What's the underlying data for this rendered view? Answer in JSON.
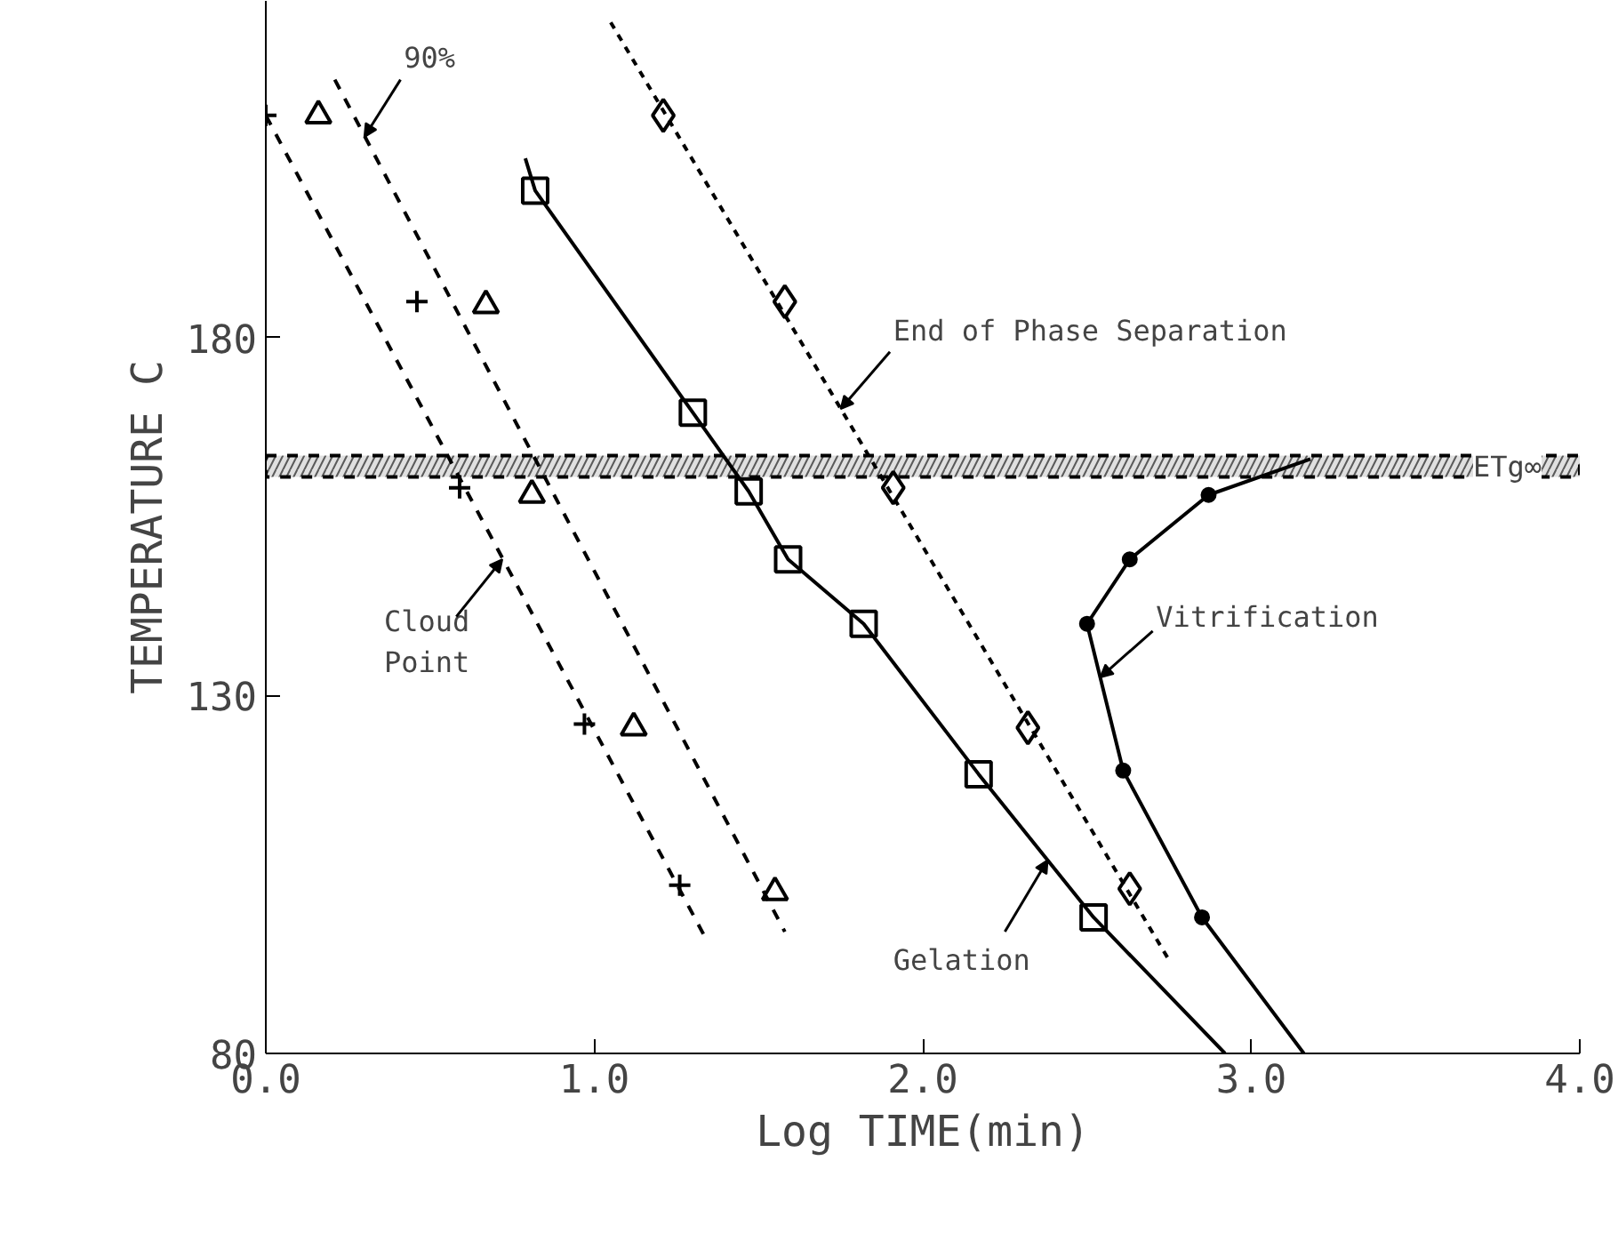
{
  "chart_data": {
    "type": "scatter",
    "xlabel": "Log TIME(min)",
    "ylabel": "TEMPERATURE C",
    "xlim": [
      0,
      4
    ],
    "ylim": [
      80,
      227
    ],
    "xticks": [
      {
        "value": 0,
        "label": "0.0"
      },
      {
        "value": 1,
        "label": "1.0"
      },
      {
        "value": 2,
        "label": "2.0"
      },
      {
        "value": 3,
        "label": "3.0"
      },
      {
        "value": 4,
        "label": "4.0"
      }
    ],
    "yticks": [
      80,
      130,
      180
    ],
    "grid": false,
    "series": [
      {
        "marker": "cross",
        "color": "#000000",
        "x": [
          0.0,
          0.46,
          0.59,
          0.97,
          1.26
        ],
        "values": [
          211,
          185,
          159,
          126,
          103.5
        ]
      },
      {
        "type": "line",
        "marker": "none",
        "line_style": "dashed",
        "color": "#000000",
        "x": [
          0.0,
          1.34
        ],
        "values": [
          211,
          96
        ]
      },
      {
        "marker": "triangle",
        "color": "#000000",
        "x": [
          0.16,
          0.67,
          0.81,
          1.12,
          1.55
        ],
        "values": [
          211,
          184.5,
          158,
          125.5,
          102.5
        ]
      },
      {
        "type": "line",
        "marker": "none",
        "line_style": "dashed",
        "color": "#000000",
        "x": [
          0.21,
          1.58
        ],
        "values": [
          216,
          97
        ]
      },
      {
        "marker": "square",
        "color": "#000000",
        "x": [
          0.82,
          1.3,
          1.47,
          1.59,
          1.82,
          2.17,
          2.52
        ],
        "values": [
          200.5,
          169.5,
          158.5,
          149,
          140,
          119,
          99
        ]
      },
      {
        "type": "line",
        "marker": "none",
        "line_style": "solid",
        "color": "#000000",
        "x": [
          0.79,
          0.82,
          1.3,
          1.47,
          1.59,
          1.82,
          2.17,
          2.52,
          2.92
        ],
        "values": [
          205,
          200.5,
          169.5,
          158.5,
          149,
          140,
          119,
          99,
          80
        ]
      },
      {
        "marker": "diamond",
        "color": "#000000",
        "x": [
          1.21,
          1.58,
          1.91,
          2.32,
          2.63
        ],
        "values": [
          211,
          185,
          159,
          125.5,
          103
        ]
      },
      {
        "type": "line",
        "marker": "none",
        "line_style": "dotted",
        "color": "#000000",
        "x": [
          1.05,
          2.75
        ],
        "values": [
          224,
          93
        ]
      },
      {
        "type": "line",
        "marker": "none",
        "line_style": "solid",
        "color": "#000000",
        "x": [
          3.18,
          2.87,
          2.63,
          2.5,
          2.61,
          2.85,
          3.16
        ],
        "values": [
          163,
          158,
          149,
          140,
          119.5,
          99,
          80
        ]
      },
      {
        "marker": "circle",
        "color": "#000000",
        "x": [
          2.87,
          2.63,
          2.5,
          2.61,
          2.85
        ],
        "values": [
          158,
          149,
          140,
          119.5,
          99
        ]
      }
    ],
    "bands": [
      {
        "axis": "y",
        "from": 160.5,
        "to": 163.5,
        "label": "ETg∞",
        "color": "#000000"
      }
    ],
    "annotations": [
      {
        "text": "90%",
        "x": 0.3,
        "y": 208
      },
      {
        "text": "End of Phase Separation",
        "x": 1.75,
        "y": 170
      },
      {
        "text": "Cloud\nPoint",
        "x": 0.72,
        "y": 149
      },
      {
        "text": "Vitrification",
        "x": 2.54,
        "y": 132.5
      },
      {
        "text": "Gelation",
        "x": 2.38,
        "y": 107
      }
    ]
  }
}
